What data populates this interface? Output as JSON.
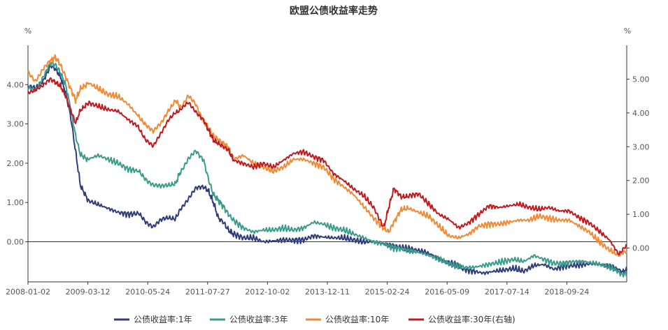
{
  "chart_data": {
    "type": "line",
    "title": "欧盟公债收益率走势",
    "left_unit": "%",
    "right_unit": "%",
    "x_tick_labels": [
      "2008-01-02",
      "2009-03-12",
      "2010-05-24",
      "2011-07-27",
      "2012-10-02",
      "2013-12-11",
      "2015-02-24",
      "2016-05-09",
      "2017-07-14",
      "2018-09-24"
    ],
    "x_range": [
      2008.0,
      2019.95
    ],
    "y_left": {
      "ticks": [
        "4.00",
        "3.00",
        "2.00",
        "1.00",
        "0.00"
      ],
      "values": [
        4,
        3,
        2,
        1,
        0
      ],
      "range": [
        -1.02,
        5.0
      ]
    },
    "y_right": {
      "ticks": [
        "5.00",
        "4.00",
        "3.00",
        "2.00",
        "1.00",
        "0.00"
      ],
      "values": [
        5,
        4,
        3,
        2,
        1,
        0
      ],
      "range": [
        -1.0,
        6.0
      ]
    },
    "series": [
      {
        "name": "公债收益率:1年",
        "color": "#2f3e7a",
        "axis": "left",
        "x": [
          2008.0,
          2008.15,
          2008.3,
          2008.45,
          2008.55,
          2008.65,
          2008.75,
          2008.85,
          2008.95,
          2009.05,
          2009.2,
          2009.4,
          2009.6,
          2009.8,
          2010.0,
          2010.2,
          2010.35,
          2010.5,
          2010.65,
          2010.8,
          2010.95,
          2011.05,
          2011.2,
          2011.35,
          2011.5,
          2011.6,
          2011.7,
          2011.8,
          2011.9,
          2012.0,
          2012.1,
          2012.3,
          2012.5,
          2012.7,
          2012.9,
          2013.1,
          2013.3,
          2013.5,
          2013.7,
          2013.9,
          2014.1,
          2014.3,
          2014.5,
          2014.7,
          2014.9,
          2015.1,
          2015.3,
          2015.5,
          2015.7,
          2015.9,
          2016.1,
          2016.3,
          2016.5,
          2016.7,
          2016.9,
          2017.1,
          2017.3,
          2017.5,
          2017.7,
          2017.9,
          2018.1,
          2018.3,
          2018.5,
          2018.7,
          2018.9,
          2019.1,
          2019.3,
          2019.5,
          2019.7,
          2019.85,
          2019.95
        ],
        "values": [
          3.95,
          3.9,
          4.1,
          4.5,
          4.4,
          4.2,
          3.8,
          3.2,
          2.3,
          1.4,
          1.05,
          0.95,
          0.85,
          0.75,
          0.7,
          0.72,
          0.5,
          0.4,
          0.55,
          0.6,
          0.6,
          0.85,
          1.1,
          1.35,
          1.4,
          1.3,
          1.0,
          0.6,
          0.5,
          0.3,
          0.2,
          0.1,
          0.1,
          0.0,
          0.02,
          0.05,
          0.04,
          0.05,
          0.15,
          0.12,
          0.1,
          0.1,
          0.05,
          0.0,
          0.0,
          -0.05,
          -0.1,
          -0.15,
          -0.2,
          -0.25,
          -0.35,
          -0.5,
          -0.55,
          -0.7,
          -0.75,
          -0.8,
          -0.75,
          -0.72,
          -0.68,
          -0.75,
          -0.6,
          -0.58,
          -0.7,
          -0.62,
          -0.6,
          -0.58,
          -0.55,
          -0.6,
          -0.65,
          -0.78,
          -0.72
        ]
      },
      {
        "name": "公债收益率:3年",
        "color": "#3a9d8c",
        "axis": "left",
        "x": [
          2008.0,
          2008.15,
          2008.3,
          2008.45,
          2008.55,
          2008.65,
          2008.75,
          2008.85,
          2008.95,
          2009.05,
          2009.2,
          2009.4,
          2009.6,
          2009.8,
          2010.0,
          2010.2,
          2010.35,
          2010.5,
          2010.65,
          2010.8,
          2010.95,
          2011.05,
          2011.2,
          2011.35,
          2011.5,
          2011.6,
          2011.7,
          2011.8,
          2011.9,
          2012.0,
          2012.1,
          2012.3,
          2012.5,
          2012.7,
          2012.9,
          2013.1,
          2013.3,
          2013.5,
          2013.7,
          2013.9,
          2014.1,
          2014.3,
          2014.5,
          2014.7,
          2014.9,
          2015.1,
          2015.3,
          2015.5,
          2015.7,
          2015.9,
          2016.1,
          2016.3,
          2016.5,
          2016.7,
          2016.9,
          2017.1,
          2017.3,
          2017.5,
          2017.7,
          2017.9,
          2018.1,
          2018.3,
          2018.5,
          2018.7,
          2018.9,
          2019.1,
          2019.3,
          2019.5,
          2019.7,
          2019.85,
          2019.95
        ],
        "values": [
          3.9,
          3.85,
          4.2,
          4.55,
          4.5,
          4.3,
          4.0,
          3.4,
          2.7,
          2.2,
          2.1,
          2.2,
          2.1,
          2.0,
          1.85,
          1.8,
          1.6,
          1.45,
          1.4,
          1.45,
          1.5,
          1.8,
          2.1,
          2.3,
          2.1,
          1.6,
          1.2,
          1.05,
          0.9,
          0.7,
          0.55,
          0.35,
          0.25,
          0.3,
          0.3,
          0.35,
          0.3,
          0.35,
          0.5,
          0.45,
          0.35,
          0.3,
          0.2,
          0.1,
          0.0,
          -0.05,
          -0.15,
          -0.2,
          -0.25,
          -0.3,
          -0.4,
          -0.5,
          -0.6,
          -0.65,
          -0.65,
          -0.6,
          -0.55,
          -0.5,
          -0.45,
          -0.5,
          -0.35,
          -0.45,
          -0.55,
          -0.55,
          -0.5,
          -0.5,
          -0.55,
          -0.6,
          -0.7,
          -0.85,
          -0.8
        ]
      },
      {
        "name": "公债收益率:10年",
        "color": "#f08a35",
        "axis": "left",
        "x": [
          2008.0,
          2008.15,
          2008.3,
          2008.45,
          2008.55,
          2008.65,
          2008.75,
          2008.85,
          2008.95,
          2009.05,
          2009.2,
          2009.4,
          2009.6,
          2009.8,
          2010.0,
          2010.2,
          2010.35,
          2010.5,
          2010.65,
          2010.8,
          2010.95,
          2011.05,
          2011.2,
          2011.35,
          2011.5,
          2011.6,
          2011.7,
          2011.8,
          2011.9,
          2012.0,
          2012.1,
          2012.3,
          2012.5,
          2012.7,
          2012.9,
          2013.1,
          2013.3,
          2013.5,
          2013.7,
          2013.9,
          2014.1,
          2014.3,
          2014.5,
          2014.7,
          2014.9,
          2015.1,
          2015.2,
          2015.3,
          2015.45,
          2015.6,
          2015.8,
          2016.0,
          2016.2,
          2016.4,
          2016.6,
          2016.8,
          2017.0,
          2017.2,
          2017.4,
          2017.6,
          2017.8,
          2018.0,
          2018.2,
          2018.4,
          2018.6,
          2018.8,
          2019.0,
          2019.2,
          2019.4,
          2019.6,
          2019.8,
          2019.95
        ],
        "values": [
          4.3,
          4.1,
          4.4,
          4.6,
          4.7,
          4.5,
          4.2,
          3.9,
          3.6,
          3.9,
          4.05,
          3.9,
          3.75,
          3.7,
          3.5,
          3.2,
          3.0,
          2.8,
          3.0,
          3.35,
          3.6,
          3.4,
          3.7,
          3.5,
          3.1,
          2.9,
          2.7,
          2.6,
          2.5,
          2.4,
          2.1,
          2.2,
          2.0,
          1.9,
          1.8,
          1.9,
          2.1,
          2.1,
          2.0,
          1.9,
          1.6,
          1.4,
          1.2,
          0.9,
          0.6,
          0.35,
          0.25,
          0.5,
          0.8,
          0.85,
          0.75,
          0.65,
          0.4,
          0.15,
          0.1,
          0.2,
          0.4,
          0.45,
          0.45,
          0.5,
          0.55,
          0.55,
          0.65,
          0.6,
          0.55,
          0.55,
          0.4,
          0.25,
          0.0,
          -0.2,
          -0.35,
          -0.25
        ]
      },
      {
        "name": "公债收益率:30年(右轴)",
        "color": "#c01a1e",
        "axis": "right",
        "x": [
          2008.0,
          2008.15,
          2008.3,
          2008.45,
          2008.55,
          2008.65,
          2008.75,
          2008.85,
          2008.95,
          2009.05,
          2009.2,
          2009.4,
          2009.6,
          2009.8,
          2010.0,
          2010.2,
          2010.35,
          2010.5,
          2010.65,
          2010.8,
          2010.95,
          2011.05,
          2011.2,
          2011.35,
          2011.5,
          2011.6,
          2011.7,
          2011.8,
          2011.9,
          2012.0,
          2012.1,
          2012.3,
          2012.5,
          2012.7,
          2012.9,
          2013.1,
          2013.3,
          2013.5,
          2013.7,
          2013.9,
          2014.1,
          2014.3,
          2014.5,
          2014.7,
          2014.9,
          2015.1,
          2015.2,
          2015.3,
          2015.45,
          2015.6,
          2015.8,
          2016.0,
          2016.2,
          2016.4,
          2016.6,
          2016.8,
          2017.0,
          2017.2,
          2017.4,
          2017.6,
          2017.8,
          2018.0,
          2018.2,
          2018.4,
          2018.6,
          2018.8,
          2019.0,
          2019.2,
          2019.4,
          2019.6,
          2019.8,
          2019.95
        ],
        "values": [
          4.6,
          4.7,
          4.8,
          5.0,
          4.9,
          4.8,
          4.5,
          4.1,
          3.7,
          4.1,
          4.3,
          4.2,
          4.1,
          4.05,
          3.8,
          3.6,
          3.2,
          3.0,
          3.4,
          3.8,
          4.0,
          4.1,
          4.3,
          4.05,
          3.8,
          3.5,
          3.2,
          3.1,
          3.0,
          2.9,
          2.6,
          2.5,
          2.4,
          2.5,
          2.4,
          2.6,
          2.8,
          2.85,
          2.7,
          2.6,
          2.2,
          2.0,
          1.75,
          1.55,
          1.2,
          0.6,
          1.2,
          1.75,
          1.5,
          1.55,
          1.6,
          1.3,
          1.0,
          0.85,
          0.6,
          0.75,
          1.0,
          1.25,
          1.2,
          1.25,
          1.3,
          1.2,
          1.15,
          1.2,
          1.1,
          1.1,
          0.9,
          0.75,
          0.5,
          0.25,
          -0.2,
          0.1
        ]
      }
    ]
  }
}
